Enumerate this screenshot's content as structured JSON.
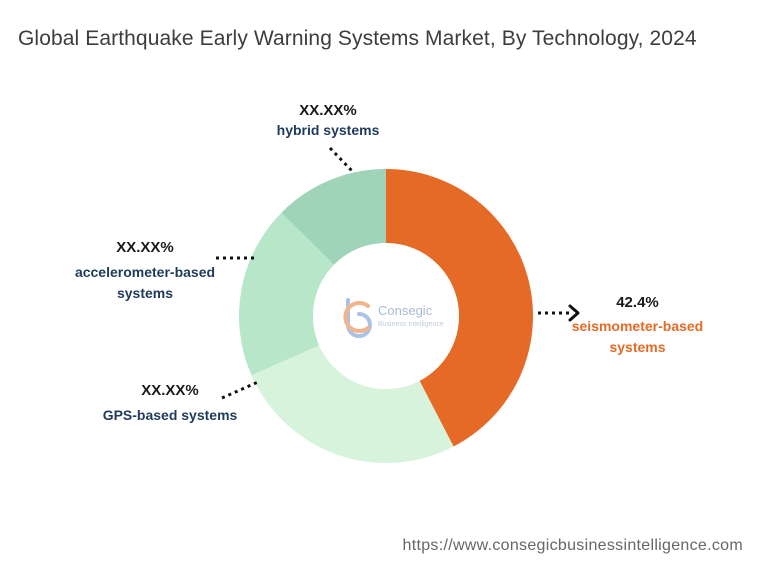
{
  "colors": {
    "seismometer": "#e56a25",
    "hybrid": "#9fd4b8",
    "accelerometer": "#b8e6c8",
    "gps": "#d8f3dc",
    "label_dark": "#1f3b5c",
    "label_orange": "#e56a25"
  },
  "brand": {
    "name": "Consegic",
    "tagline": "Business Intelligence"
  },
  "footer": {
    "url": "https://www.consegicbusinessintelligence.com"
  },
  "chart_data": {
    "type": "pie",
    "variant": "donut",
    "title": "Global Earthquake Early Warning Systems Market, By Technology, 2024",
    "slices": [
      {
        "name": "seismometer-based systems",
        "value": 42.4,
        "label": "42.4%",
        "color": "#e56a25"
      },
      {
        "name": "GPS-based systems",
        "value": 26.0,
        "label": "XX.XX%",
        "color": "#d8f3dc"
      },
      {
        "name": "accelerometer-based systems",
        "value": 19.0,
        "label": "XX.XX%",
        "color": "#b8e6c8"
      },
      {
        "name": "hybrid systems",
        "value": 12.6,
        "label": "XX.XX%",
        "color": "#9fd4b8"
      }
    ]
  }
}
